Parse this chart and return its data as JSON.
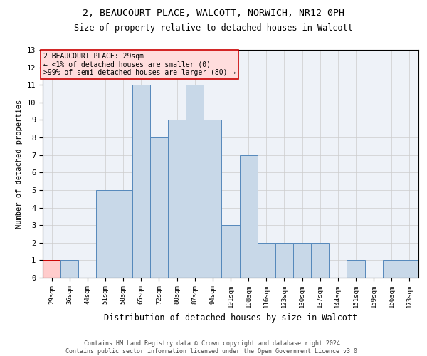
{
  "title_line1": "2, BEAUCOURT PLACE, WALCOTT, NORWICH, NR12 0PH",
  "title_line2": "Size of property relative to detached houses in Walcott",
  "xlabel": "Distribution of detached houses by size in Walcott",
  "ylabel": "Number of detached properties",
  "categories": [
    "29sqm",
    "36sqm",
    "44sqm",
    "51sqm",
    "58sqm",
    "65sqm",
    "72sqm",
    "80sqm",
    "87sqm",
    "94sqm",
    "101sqm",
    "108sqm",
    "116sqm",
    "123sqm",
    "130sqm",
    "137sqm",
    "144sqm",
    "151sqm",
    "159sqm",
    "166sqm",
    "173sqm"
  ],
  "values": [
    1,
    1,
    0,
    5,
    5,
    11,
    8,
    9,
    11,
    9,
    3,
    7,
    2,
    2,
    2,
    2,
    0,
    1,
    0,
    1,
    1
  ],
  "bar_color": "#c8d8e8",
  "bar_edge_color": "#5588bb",
  "highlight_index": 0,
  "highlight_color": "#ffcccc",
  "highlight_edge_color": "#cc0000",
  "ylim": [
    0,
    13
  ],
  "yticks": [
    0,
    1,
    2,
    3,
    4,
    5,
    6,
    7,
    8,
    9,
    10,
    11,
    12,
    13
  ],
  "annotation_line1": "2 BEAUCOURT PLACE: 29sqm",
  "annotation_line2": "← <1% of detached houses are smaller (0)",
  "annotation_line3": ">99% of semi-detached houses are larger (80) →",
  "annotation_box_color": "#ffdddd",
  "annotation_edge_color": "#cc0000",
  "footer_line1": "Contains HM Land Registry data © Crown copyright and database right 2024.",
  "footer_line2": "Contains public sector information licensed under the Open Government Licence v3.0.",
  "grid_color": "#cccccc",
  "background_color": "#eef2f8"
}
